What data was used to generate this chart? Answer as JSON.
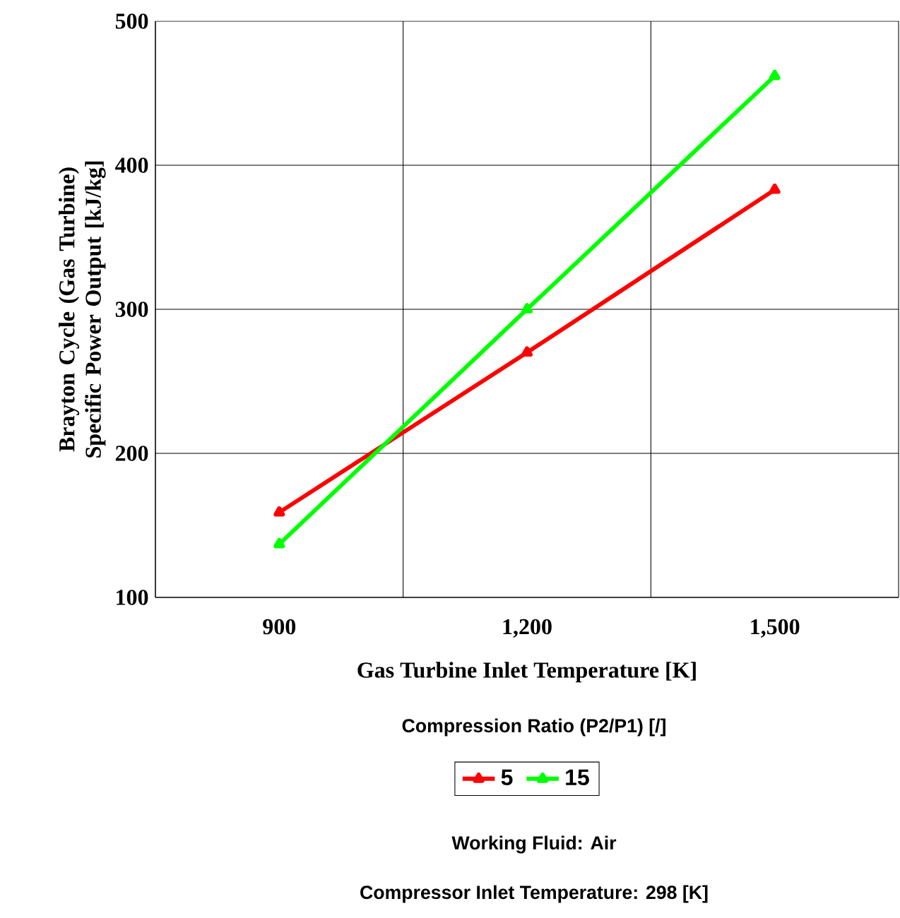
{
  "chart_data": {
    "type": "line",
    "xlabel": "Gas Turbine Inlet Temperature [K]",
    "ylabel": "Brayton Cycle (Gas Turbine) Specific Power Output [kJ/kg]",
    "categories": [
      "900",
      "1,200",
      "1,500"
    ],
    "series": [
      {
        "name": "5",
        "color": "#ff0000",
        "values": [
          159,
          270,
          383
        ]
      },
      {
        "name": "15",
        "color": "#00ff00",
        "values": [
          137,
          300,
          462
        ]
      }
    ],
    "ylim": [
      100,
      500
    ],
    "yticks": [
      100,
      200,
      300,
      400,
      500
    ],
    "grid": true,
    "legend": "bottom",
    "legend_title": "Compression Ratio (P2/P1) [/]",
    "marker": "triangle",
    "line_style": "solid",
    "annotations": [
      "Working Fluid:  Air",
      "Compressor Inlet Temperature:  298 [K]"
    ]
  }
}
